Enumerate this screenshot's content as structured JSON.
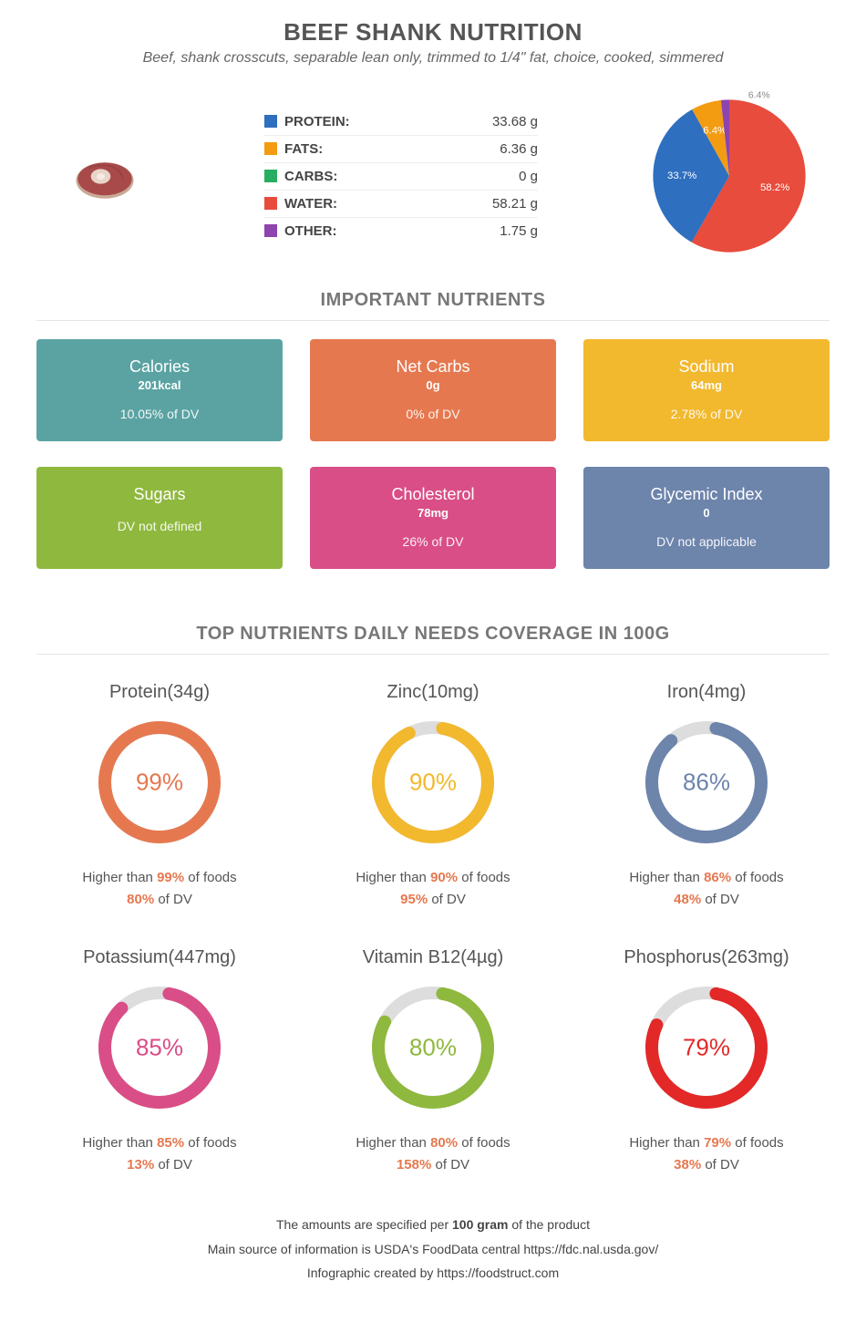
{
  "header": {
    "title": "BEEF SHANK NUTRITION",
    "subtitle": "Beef, shank crosscuts, separable lean only, trimmed to 1/4\" fat, choice, cooked, simmered"
  },
  "macros": {
    "rows": [
      {
        "label": "PROTEIN:",
        "value": "33.68 g",
        "color": "#2e6fbf"
      },
      {
        "label": "FATS:",
        "value": "6.36 g",
        "color": "#f39c12"
      },
      {
        "label": "CARBS:",
        "value": "0 g",
        "color": "#27ae60"
      },
      {
        "label": "WATER:",
        "value": "58.21 g",
        "color": "#e74c3c"
      },
      {
        "label": "OTHER:",
        "value": "1.75 g",
        "color": "#8e44ad"
      }
    ]
  },
  "pie": {
    "slices": [
      {
        "pct": 58.21,
        "color": "#e74c3c",
        "label": "58.2%"
      },
      {
        "pct": 33.68,
        "color": "#2e6fbf",
        "label": "33.7%"
      },
      {
        "pct": 6.36,
        "color": "#f39c12",
        "label": "6.4%"
      },
      {
        "pct": 1.75,
        "color": "#8e44ad",
        "label": ""
      }
    ]
  },
  "sections": {
    "nutrients_title": "IMPORTANT NUTRIENTS",
    "coverage_title": "TOP NUTRIENTS DAILY NEEDS COVERAGE IN 100G"
  },
  "cards": [
    {
      "title": "Calories",
      "value": "201kcal",
      "dv": "10.05% of DV",
      "bg": "#5ba3a3"
    },
    {
      "title": "Net Carbs",
      "value": "0g",
      "dv": "0% of DV",
      "bg": "#e67850"
    },
    {
      "title": "Sodium",
      "value": "64mg",
      "dv": "2.78% of DV",
      "bg": "#f2b82e"
    },
    {
      "title": "Sugars",
      "value": "",
      "dv": "DV not defined",
      "bg": "#8fb83e"
    },
    {
      "title": "Cholesterol",
      "value": "78mg",
      "dv": "26% of DV",
      "bg": "#d94e87"
    },
    {
      "title": "Glycemic Index",
      "value": "0",
      "dv": "DV not applicable",
      "bg": "#6d84ab"
    }
  ],
  "donuts": [
    {
      "name": "Protein(34g)",
      "pct": 99,
      "color": "#e67850",
      "higher": "99%",
      "dv": "80%"
    },
    {
      "name": "Zinc(10mg)",
      "pct": 90,
      "color": "#f2b82e",
      "higher": "90%",
      "dv": "95%"
    },
    {
      "name": "Iron(4mg)",
      "pct": 86,
      "color": "#6d84ab",
      "higher": "86%",
      "dv": "48%"
    },
    {
      "name": "Potassium(447mg)",
      "pct": 85,
      "color": "#d94e87",
      "higher": "85%",
      "dv": "13%"
    },
    {
      "name": "Vitamin B12(4µg)",
      "pct": 80,
      "color": "#8fb83e",
      "higher": "80%",
      "dv": "158%"
    },
    {
      "name": "Phosphorus(263mg)",
      "pct": 79,
      "color": "#e32828",
      "higher": "79%",
      "dv": "38%"
    }
  ],
  "donut_text": {
    "higher_prefix": "Higher than ",
    "higher_suffix": " of foods",
    "dv_suffix": " of DV"
  },
  "footer": {
    "line1_a": "The amounts are specified per ",
    "line1_b": "100 gram",
    "line1_c": " of the product",
    "line2": "Main source of information is USDA's FoodData central https://fdc.nal.usda.gov/",
    "line3": "Infographic created by https://foodstruct.com"
  },
  "highlight_color": "#e67850"
}
